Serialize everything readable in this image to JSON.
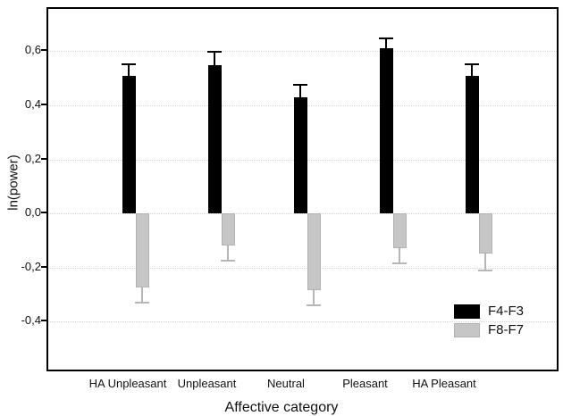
{
  "figure": {
    "background": "#ffffff",
    "frame_color": "#000000",
    "grid_color": "#d4d4d4"
  },
  "chart_data": {
    "type": "bar",
    "title": "",
    "xlabel": "Affective category",
    "ylabel": "ln(power)",
    "categories": [
      "HA Unpleasant",
      "Unpleasant",
      "Neutral",
      "Pleasant",
      "HA Pleasant"
    ],
    "series": [
      {
        "name": "F4-F3",
        "color": "#000000",
        "error_color": "#000000",
        "values": [
          0.51,
          0.55,
          0.43,
          0.61,
          0.51
        ],
        "errors": [
          0.045,
          0.05,
          0.05,
          0.04,
          0.045
        ]
      },
      {
        "name": "F8-F7",
        "color": "#c6c6c6",
        "border_color": "#b2b2b2",
        "error_color": "#b6b6b6",
        "values": [
          -0.275,
          -0.12,
          -0.285,
          -0.13,
          -0.15
        ],
        "errors": [
          0.06,
          0.06,
          0.06,
          0.06,
          0.065
        ]
      }
    ],
    "y_ticks": [
      {
        "value": 0.6,
        "label": "0,6"
      },
      {
        "value": 0.4,
        "label": "0,4"
      },
      {
        "value": 0.2,
        "label": "0,2"
      },
      {
        "value": 0.0,
        "label": "0,0"
      },
      {
        "value": -0.2,
        "label": "-0,2"
      },
      {
        "value": -0.4,
        "label": "-0,4"
      }
    ],
    "ylim": [
      -0.585,
      0.757
    ],
    "grid": "horizontal dotted at every y tick",
    "error_bars": "outward whisker only, capped",
    "legend_position": "inside bottom-right",
    "decimal_separator": ","
  }
}
